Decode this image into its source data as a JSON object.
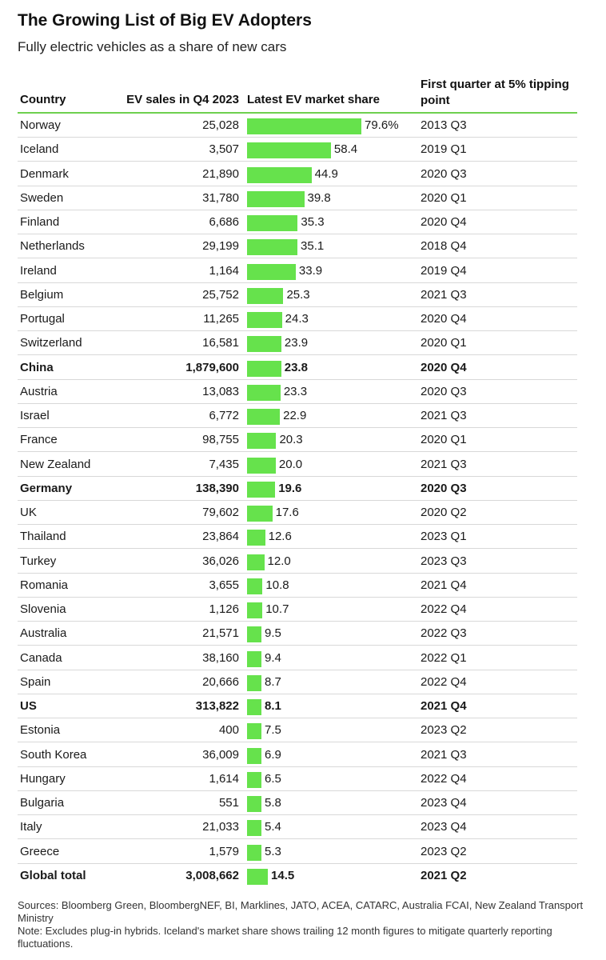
{
  "title": "The Growing List of Big EV Adopters",
  "subtitle": "Fully electric vehicles as a share of new cars",
  "headers": {
    "country": "Country",
    "sales": "EV sales in Q4 2023",
    "share": "Latest EV market share",
    "tipping": "First quarter at 5% tipping point"
  },
  "colors": {
    "bar": "#66e24c",
    "rule": "#6ed04f"
  },
  "chart_data": {
    "type": "table",
    "columns": [
      "Country",
      "EV sales in Q4 2023",
      "Latest EV market share",
      "First quarter at 5% tipping point"
    ],
    "share_max": 79.6,
    "rows": [
      {
        "country": "Norway",
        "sales": "25,028",
        "share": 79.6,
        "share_label": "79.6%",
        "tipping": "2013 Q3",
        "bold": false
      },
      {
        "country": "Iceland",
        "sales": "3,507",
        "share": 58.4,
        "share_label": "58.4",
        "tipping": "2019 Q1",
        "bold": false
      },
      {
        "country": "Denmark",
        "sales": "21,890",
        "share": 44.9,
        "share_label": "44.9",
        "tipping": "2020 Q3",
        "bold": false
      },
      {
        "country": "Sweden",
        "sales": "31,780",
        "share": 39.8,
        "share_label": "39.8",
        "tipping": "2020 Q1",
        "bold": false
      },
      {
        "country": "Finland",
        "sales": "6,686",
        "share": 35.3,
        "share_label": "35.3",
        "tipping": "2020 Q4",
        "bold": false
      },
      {
        "country": "Netherlands",
        "sales": "29,199",
        "share": 35.1,
        "share_label": "35.1",
        "tipping": "2018 Q4",
        "bold": false
      },
      {
        "country": "Ireland",
        "sales": "1,164",
        "share": 33.9,
        "share_label": "33.9",
        "tipping": "2019 Q4",
        "bold": false
      },
      {
        "country": "Belgium",
        "sales": "25,752",
        "share": 25.3,
        "share_label": "25.3",
        "tipping": "2021 Q3",
        "bold": false
      },
      {
        "country": "Portugal",
        "sales": "11,265",
        "share": 24.3,
        "share_label": "24.3",
        "tipping": "2020 Q4",
        "bold": false
      },
      {
        "country": "Switzerland",
        "sales": "16,581",
        "share": 23.9,
        "share_label": "23.9",
        "tipping": "2020 Q1",
        "bold": false
      },
      {
        "country": "China",
        "sales": "1,879,600",
        "share": 23.8,
        "share_label": "23.8",
        "tipping": "2020 Q4",
        "bold": true
      },
      {
        "country": "Austria",
        "sales": "13,083",
        "share": 23.3,
        "share_label": "23.3",
        "tipping": "2020 Q3",
        "bold": false
      },
      {
        "country": "Israel",
        "sales": "6,772",
        "share": 22.9,
        "share_label": "22.9",
        "tipping": "2021 Q3",
        "bold": false
      },
      {
        "country": "France",
        "sales": "98,755",
        "share": 20.3,
        "share_label": "20.3",
        "tipping": "2020 Q1",
        "bold": false
      },
      {
        "country": "New Zealand",
        "sales": "7,435",
        "share": 20.0,
        "share_label": "20.0",
        "tipping": "2021 Q3",
        "bold": false
      },
      {
        "country": "Germany",
        "sales": "138,390",
        "share": 19.6,
        "share_label": "19.6",
        "tipping": "2020 Q3",
        "bold": true
      },
      {
        "country": "UK",
        "sales": "79,602",
        "share": 17.6,
        "share_label": "17.6",
        "tipping": "2020 Q2",
        "bold": false
      },
      {
        "country": "Thailand",
        "sales": "23,864",
        "share": 12.6,
        "share_label": "12.6",
        "tipping": "2023 Q1",
        "bold": false
      },
      {
        "country": "Turkey",
        "sales": "36,026",
        "share": 12.0,
        "share_label": "12.0",
        "tipping": "2023 Q3",
        "bold": false
      },
      {
        "country": "Romania",
        "sales": "3,655",
        "share": 10.8,
        "share_label": "10.8",
        "tipping": "2021 Q4",
        "bold": false
      },
      {
        "country": "Slovenia",
        "sales": "1,126",
        "share": 10.7,
        "share_label": "10.7",
        "tipping": "2022 Q4",
        "bold": false
      },
      {
        "country": "Australia",
        "sales": "21,571",
        "share": 9.5,
        "share_label": "9.5",
        "tipping": "2022 Q3",
        "bold": false
      },
      {
        "country": "Canada",
        "sales": "38,160",
        "share": 9.4,
        "share_label": "9.4",
        "tipping": "2022 Q1",
        "bold": false
      },
      {
        "country": "Spain",
        "sales": "20,666",
        "share": 8.7,
        "share_label": "8.7",
        "tipping": "2022 Q4",
        "bold": false
      },
      {
        "country": "US",
        "sales": "313,822",
        "share": 8.1,
        "share_label": "8.1",
        "tipping": "2021 Q4",
        "bold": true
      },
      {
        "country": "Estonia",
        "sales": "400",
        "share": 7.5,
        "share_label": "7.5",
        "tipping": "2023 Q2",
        "bold": false
      },
      {
        "country": "South Korea",
        "sales": "36,009",
        "share": 6.9,
        "share_label": "6.9",
        "tipping": "2021 Q3",
        "bold": false
      },
      {
        "country": "Hungary",
        "sales": "1,614",
        "share": 6.5,
        "share_label": "6.5",
        "tipping": "2022 Q4",
        "bold": false
      },
      {
        "country": "Bulgaria",
        "sales": "551",
        "share": 5.8,
        "share_label": "5.8",
        "tipping": "2023 Q4",
        "bold": false
      },
      {
        "country": "Italy",
        "sales": "21,033",
        "share": 5.4,
        "share_label": "5.4",
        "tipping": "2023 Q4",
        "bold": false
      },
      {
        "country": "Greece",
        "sales": "1,579",
        "share": 5.3,
        "share_label": "5.3",
        "tipping": "2023 Q2",
        "bold": false
      },
      {
        "country": "Global total",
        "sales": "3,008,662",
        "share": 14.5,
        "share_label": "14.5",
        "tipping": "2021 Q2",
        "bold": true
      }
    ]
  },
  "footer": {
    "sources": "Sources: Bloomberg Green, BloombergNEF, BI, Marklines, JATO, ACEA, CATARC, Australia FCAI, New Zealand Transport Ministry",
    "note": "Note: Excludes plug-in hybrids. Iceland's market share shows trailing 12 month figures to mitigate quarterly reporting fluctuations."
  }
}
